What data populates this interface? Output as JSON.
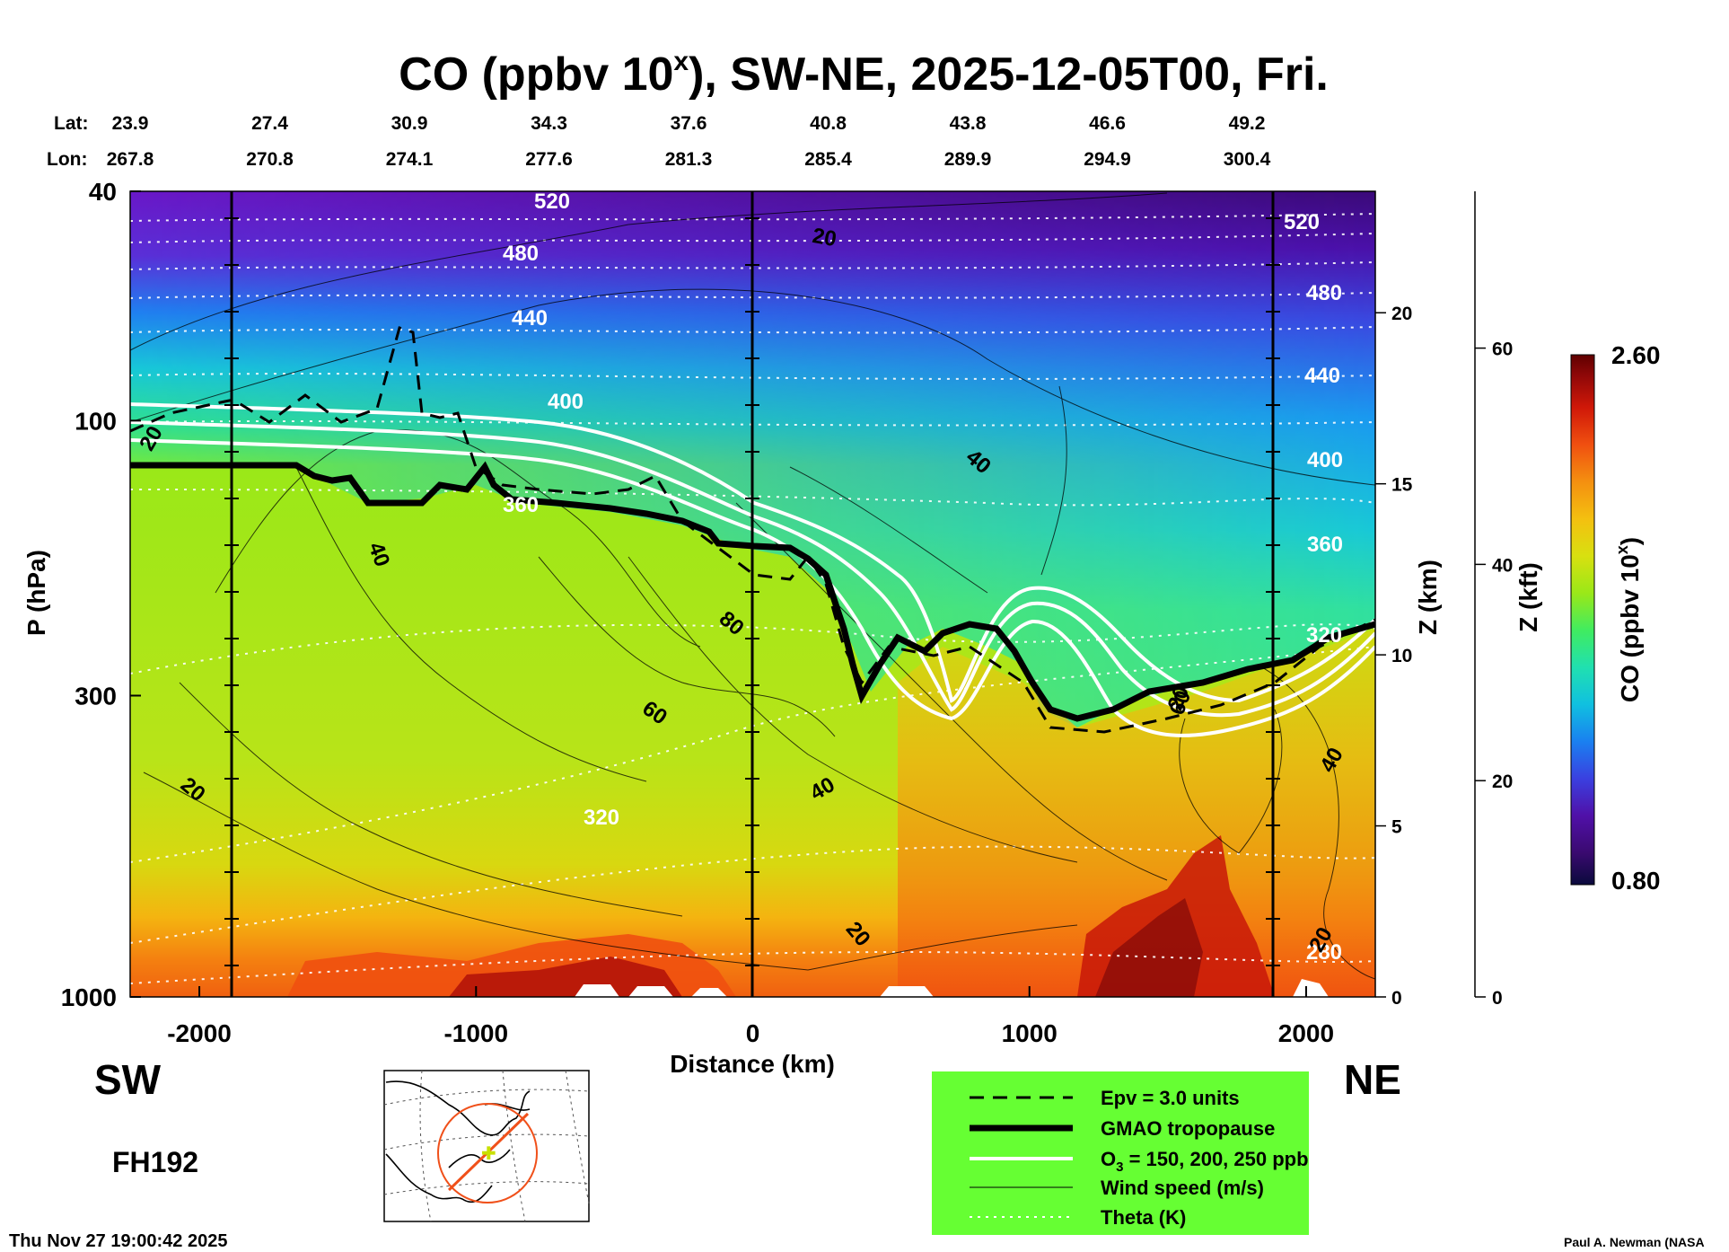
{
  "chart_data": {
    "type": "heatmap",
    "title": "CO (ppbv 10",
    "title_sup": "x",
    "title_rest": "), SW-NE, 2025-12-05T00, Fri.",
    "lat_label": "Lat:",
    "lon_label": "Lon:",
    "lat_values": [
      "23.9",
      "27.4",
      "30.9",
      "34.3",
      "37.6",
      "40.8",
      "43.8",
      "46.6",
      "49.2"
    ],
    "lon_values": [
      "267.8",
      "270.8",
      "274.1",
      "277.6",
      "281.3",
      "285.4",
      "289.9",
      "294.9",
      "300.4"
    ],
    "xlabel": "Distance (km)",
    "ylabel": "P (hPa)",
    "x_ticks": [
      -2000,
      -1000,
      0,
      1000,
      2000
    ],
    "x_range": [
      -2250,
      2250
    ],
    "y_ticks": [
      40,
      100,
      300,
      1000
    ],
    "y_range": [
      1000,
      40
    ],
    "y_scale": "log",
    "z_km_label": "Z (km)",
    "z_km_ticks": [
      0,
      5,
      10,
      15,
      20
    ],
    "z_kft_label": "Z (kft)",
    "z_kft_ticks": [
      0,
      20,
      40,
      60
    ],
    "colorbar": {
      "label": "CO (ppbv 10",
      "label_sup": "x",
      "label_end": ")",
      "max": "2.60",
      "min": "0.80",
      "colors": [
        "#0a0a3c",
        "#3a0a70",
        "#5010a8",
        "#3a40e0",
        "#1a80f0",
        "#10c0e0",
        "#20e0b0",
        "#40ec60",
        "#9ae818",
        "#d8e010",
        "#f4c010",
        "#f49010",
        "#f05010",
        "#d01808",
        "#900808",
        "#600000"
      ]
    },
    "theta_labels": [
      "520",
      "480",
      "440",
      "400",
      "360",
      "320",
      "280",
      "520",
      "480",
      "440",
      "400",
      "360",
      "320"
    ],
    "wind_labels": [
      "20",
      "40",
      "20",
      "40",
      "80",
      "60",
      "20",
      "40",
      "60",
      "40",
      "20",
      "20",
      "40",
      "20"
    ],
    "sw_label": "SW",
    "ne_label": "NE",
    "forecast_hour": "FH192",
    "legend": [
      {
        "label": "Epv = 3.0 units",
        "style": "dashed"
      },
      {
        "label": "GMAO tropopause",
        "style": "thick"
      },
      {
        "label": "O",
        "sub": "3",
        "rest": " = 150, 200, 250 ppb",
        "style": "white"
      },
      {
        "label": "Wind speed (m/s)",
        "style": "thin"
      },
      {
        "label": "Theta (K)",
        "style": "dotted"
      }
    ],
    "legend_bg": "#66ff33",
    "timestamp": "Thu Nov 27 19:00:42 2025",
    "credit": "Paul A. Newman (NASA"
  }
}
